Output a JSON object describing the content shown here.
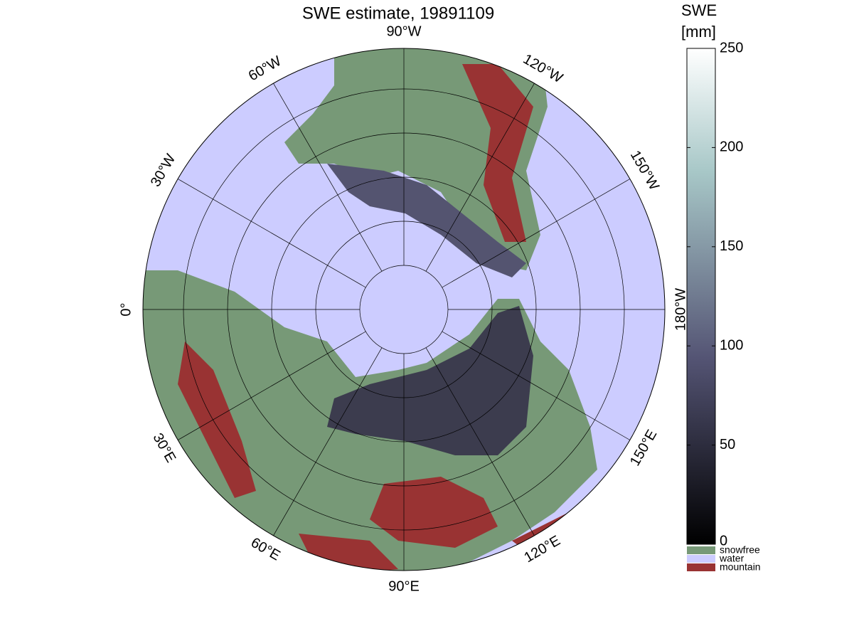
{
  "title": "SWE estimate, 19891109",
  "colorbar": {
    "label": [
      "SWE",
      "[mm]"
    ],
    "lim": [
      0,
      250
    ],
    "ticks": [
      0,
      50,
      100,
      150,
      200,
      250
    ]
  },
  "lon_labels": [
    "90°W",
    "120°W",
    "150°W",
    "180°W",
    "150°E",
    "120°E",
    "90°E",
    "60°E",
    "30°E",
    "0°",
    "30°W",
    "60°W"
  ],
  "legend": [
    {
      "name": "snowfree",
      "color": "#779977"
    },
    {
      "name": "water",
      "color": "#ccccff"
    },
    {
      "name": "mountain",
      "color": "#993333"
    }
  ]
}
